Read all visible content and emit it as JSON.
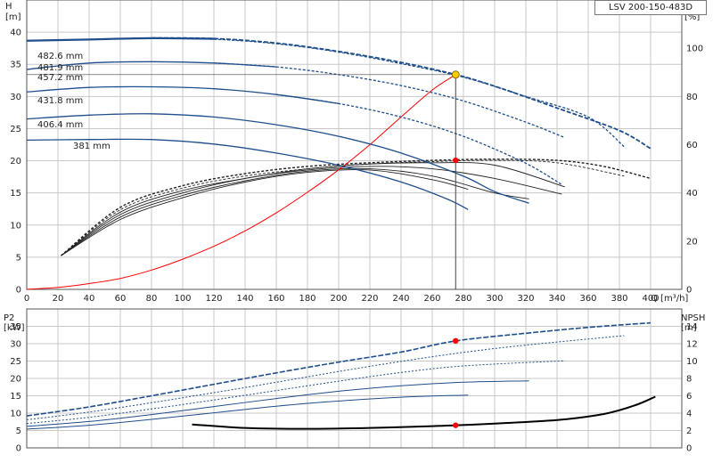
{
  "product_label": "LSV 200-150-483D",
  "colors": {
    "head_curve": "#1f4e8c",
    "power_curve": "#1f4e8c",
    "efficiency": "#222222",
    "system_curve": "#ff0000",
    "npsh": "#000000",
    "duty_point": "#ffcc00",
    "marker": "#ff0000",
    "grid": "#c8c8c8"
  },
  "chart_data": [
    {
      "type": "line",
      "name": "head",
      "xlabel": "Q [m³/h]",
      "ylabel_left": "H\n[m]",
      "ylabel_right": "eta\n[%]",
      "xlim": [
        0,
        420
      ],
      "ylim": [
        0,
        45
      ],
      "ylim_right": [
        0,
        120
      ],
      "x_ticks": [
        0,
        20,
        40,
        60,
        80,
        100,
        120,
        140,
        160,
        180,
        200,
        220,
        240,
        260,
        280,
        300,
        320,
        340,
        360,
        380,
        400
      ],
      "y_ticks": [
        0,
        5,
        10,
        15,
        20,
        25,
        30,
        35,
        40
      ],
      "y_ticks_right": [
        0,
        20,
        40,
        60,
        80,
        100
      ],
      "grid": true,
      "head_curves": [
        {
          "name": "482.6 mm",
          "points": [
            [
              0,
              38.7
            ],
            [
              40,
              38.9
            ],
            [
              80,
              39.1
            ],
            [
              120,
              39.0
            ],
            [
              160,
              38.3
            ],
            [
              200,
              37.0
            ],
            [
              240,
              35.3
            ],
            [
              275,
              33.4
            ],
            [
              300,
              31.6
            ],
            [
              340,
              28.2
            ],
            [
              380,
              24.7
            ],
            [
              400,
              21.9
            ]
          ]
        },
        {
          "name": "481.9 mm",
          "points": [
            [
              0,
              38.6
            ],
            [
              40,
              38.8
            ],
            [
              80,
              39.0
            ],
            [
              120,
              38.9
            ],
            [
              160,
              38.2
            ],
            [
              200,
              36.9
            ],
            [
              240,
              35.1
            ],
            [
              280,
              33.0
            ],
            [
              320,
              30.0
            ],
            [
              360,
              26.8
            ],
            [
              383,
              22.2
            ]
          ]
        },
        {
          "name": "457.2 mm",
          "points": [
            [
              0,
              34.2
            ],
            [
              40,
              35.2
            ],
            [
              80,
              35.4
            ],
            [
              120,
              35.2
            ],
            [
              160,
              34.6
            ],
            [
              200,
              33.4
            ],
            [
              240,
              31.7
            ],
            [
              280,
              29.3
            ],
            [
              320,
              26.0
            ],
            [
              345,
              23.6
            ]
          ]
        },
        {
          "name": "431.8 mm",
          "points": [
            [
              0,
              30.7
            ],
            [
              40,
              31.4
            ],
            [
              80,
              31.5
            ],
            [
              120,
              31.2
            ],
            [
              160,
              30.3
            ],
            [
              200,
              28.9
            ],
            [
              240,
              26.8
            ],
            [
              280,
              23.8
            ],
            [
              320,
              19.6
            ],
            [
              343,
              16.3
            ]
          ]
        },
        {
          "name": "406.4 mm",
          "points": [
            [
              0,
              26.5
            ],
            [
              40,
              27.1
            ],
            [
              80,
              27.3
            ],
            [
              120,
              26.8
            ],
            [
              160,
              25.6
            ],
            [
              200,
              23.8
            ],
            [
              240,
              21.2
            ],
            [
              280,
              17.6
            ],
            [
              300,
              15.2
            ],
            [
              322,
              13.4
            ]
          ]
        },
        {
          "name": "381 mm",
          "points": [
            [
              0,
              23.2
            ],
            [
              40,
              23.3
            ],
            [
              80,
              23.3
            ],
            [
              120,
              22.6
            ],
            [
              160,
              21.2
            ],
            [
              200,
              19.3
            ],
            [
              240,
              16.7
            ],
            [
              270,
              14.0
            ],
            [
              283,
              12.4
            ]
          ]
        }
      ],
      "efficiency_curves": [
        {
          "name": "482.6 mm",
          "points": [
            [
              22,
              14
            ],
            [
              60,
              34
            ],
            [
              100,
              43
            ],
            [
              140,
              48
            ],
            [
              180,
              51
            ],
            [
              220,
              52.5
            ],
            [
              260,
              53.5
            ],
            [
              300,
              54
            ],
            [
              340,
              53.5
            ],
            [
              370,
              51
            ],
            [
              400,
              46
            ]
          ]
        },
        {
          "name": "481.9 mm",
          "points": [
            [
              22,
              14
            ],
            [
              60,
              33
            ],
            [
              100,
              42
            ],
            [
              140,
              47
            ],
            [
              180,
              50
            ],
            [
              220,
              52
            ],
            [
              260,
              53
            ],
            [
              300,
              53.5
            ],
            [
              340,
              52.5
            ],
            [
              383,
              47
            ]
          ]
        },
        {
          "name": "457.2 mm",
          "points": [
            [
              22,
              14
            ],
            [
              60,
              32
            ],
            [
              100,
              41
            ],
            [
              140,
              46
            ],
            [
              180,
              50
            ],
            [
              220,
              52
            ],
            [
              260,
              52.5
            ],
            [
              300,
              51.5
            ],
            [
              345,
              42.5
            ]
          ]
        },
        {
          "name": "431.8 mm",
          "points": [
            [
              22,
              14
            ],
            [
              60,
              31
            ],
            [
              100,
              40
            ],
            [
              140,
              46
            ],
            [
              180,
              49.5
            ],
            [
              220,
              51
            ],
            [
              260,
              50
            ],
            [
              300,
              46
            ],
            [
              343,
              39.5
            ]
          ]
        },
        {
          "name": "406.4 mm",
          "points": [
            [
              22,
              14
            ],
            [
              60,
              30
            ],
            [
              100,
              39
            ],
            [
              140,
              45
            ],
            [
              180,
              49
            ],
            [
              220,
              50
            ],
            [
              260,
              47
            ],
            [
              300,
              40
            ],
            [
              322,
              37.5
            ]
          ]
        },
        {
          "name": "381 mm",
          "points": [
            [
              22,
              14
            ],
            [
              60,
              29
            ],
            [
              100,
              38
            ],
            [
              140,
              44.5
            ],
            [
              180,
              48.5
            ],
            [
              220,
              49.5
            ],
            [
              260,
              45.5
            ],
            [
              283,
              41.5
            ]
          ]
        }
      ],
      "system_curve": [
        [
          0,
          0
        ],
        [
          20,
          0.3
        ],
        [
          40,
          0.9
        ],
        [
          60,
          1.7
        ],
        [
          80,
          3.0
        ],
        [
          100,
          4.7
        ],
        [
          120,
          6.7
        ],
        [
          140,
          9.1
        ],
        [
          160,
          11.9
        ],
        [
          180,
          15.1
        ],
        [
          200,
          18.6
        ],
        [
          220,
          22.5
        ],
        [
          240,
          26.8
        ],
        [
          260,
          31.0
        ],
        [
          275,
          33.4
        ]
      ],
      "duty_point": {
        "q": 275,
        "h": 33.4
      },
      "efficiency_marker": {
        "q": 275,
        "eta": 53.5
      }
    },
    {
      "type": "line",
      "name": "power_npsh",
      "ylabel_left": "P2\n[kW]",
      "ylabel_right": "NPSH\n[m]",
      "xlim": [
        0,
        420
      ],
      "ylim": [
        0,
        40
      ],
      "ylim_right": [
        0,
        16
      ],
      "y_ticks": [
        0,
        5,
        10,
        15,
        20,
        25,
        30,
        35
      ],
      "y_ticks_right": [
        0,
        2,
        4,
        6,
        8,
        10,
        12,
        14
      ],
      "grid": true,
      "power_curves": [
        {
          "name": "482.6 mm",
          "points": [
            [
              0,
              9.2
            ],
            [
              40,
              11.8
            ],
            [
              80,
              15.0
            ],
            [
              120,
              18.3
            ],
            [
              160,
              21.6
            ],
            [
              200,
              24.7
            ],
            [
              240,
              27.6
            ],
            [
              275,
              30.8
            ],
            [
              320,
              33.0
            ],
            [
              360,
              34.7
            ],
            [
              400,
              36.0
            ]
          ]
        },
        {
          "name": "481.9 mm",
          "points": [
            [
              0,
              8.1
            ],
            [
              40,
              10.3
            ],
            [
              80,
              13.0
            ],
            [
              120,
              15.9
            ],
            [
              160,
              18.9
            ],
            [
              200,
              22.0
            ],
            [
              240,
              24.9
            ],
            [
              280,
              27.5
            ],
            [
              320,
              29.6
            ],
            [
              383,
              32.3
            ]
          ]
        },
        {
          "name": "457.2 mm",
          "points": [
            [
              0,
              7.0
            ],
            [
              40,
              8.8
            ],
            [
              80,
              11.2
            ],
            [
              120,
              13.8
            ],
            [
              160,
              16.5
            ],
            [
              200,
              19.2
            ],
            [
              240,
              21.7
            ],
            [
              280,
              23.6
            ],
            [
              345,
              25.1
            ]
          ]
        },
        {
          "name": "431.8 mm",
          "points": [
            [
              0,
              6.2
            ],
            [
              40,
              7.6
            ],
            [
              80,
              9.6
            ],
            [
              120,
              11.9
            ],
            [
              160,
              14.2
            ],
            [
              200,
              16.3
            ],
            [
              240,
              17.9
            ],
            [
              280,
              18.9
            ],
            [
              322,
              19.3
            ]
          ]
        },
        {
          "name": "406.4 mm",
          "points": [
            [
              0,
              5.4
            ],
            [
              40,
              6.5
            ],
            [
              80,
              8.2
            ],
            [
              120,
              10.1
            ],
            [
              160,
              12.0
            ],
            [
              200,
              13.5
            ],
            [
              240,
              14.6
            ],
            [
              283,
              15.2
            ]
          ]
        }
      ],
      "npsh_curve": [
        [
          106,
          2.7
        ],
        [
          140,
          2.3
        ],
        [
          180,
          2.2
        ],
        [
          220,
          2.3
        ],
        [
          260,
          2.5
        ],
        [
          275,
          2.6
        ],
        [
          300,
          2.8
        ],
        [
          340,
          3.2
        ],
        [
          370,
          3.9
        ],
        [
          390,
          4.9
        ],
        [
          403,
          5.9
        ]
      ],
      "power_marker": {
        "q": 275,
        "p2": 30.8
      },
      "npsh_marker": {
        "q": 275,
        "npsh": 2.6
      }
    }
  ]
}
